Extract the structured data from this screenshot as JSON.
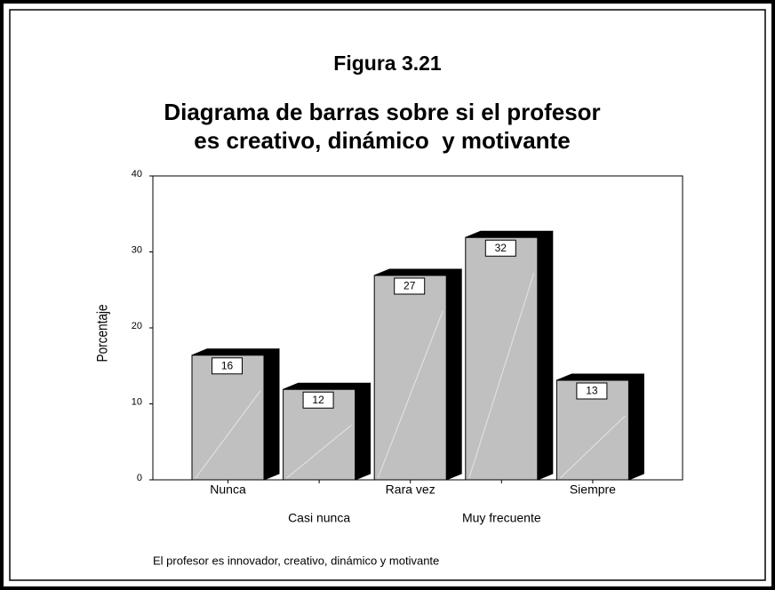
{
  "chart_data": {
    "type": "bar3d",
    "title": "Figura 3.21",
    "subtitle": [
      "Diagrama de barras sobre si el profesor",
      "es creativo, dinámico  y motivante"
    ],
    "categories": [
      "Nunca",
      "Casi nunca",
      "Rara vez",
      "Muy frecuente",
      "Siempre"
    ],
    "values": [
      16.4,
      11.9,
      26.9,
      31.9,
      13.1
    ],
    "value_labels": [
      "16",
      "12",
      "27",
      "32",
      "13"
    ],
    "color": "#c0c0c0",
    "ylim": [
      0,
      40
    ],
    "yticks": [
      0,
      10,
      20,
      30,
      40
    ],
    "y_label": "Porcentaje",
    "x_label": "El profesor es innovador, creativo, dinámico y motivante"
  }
}
